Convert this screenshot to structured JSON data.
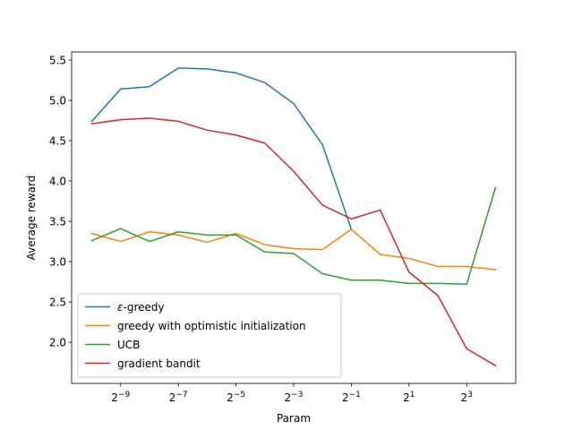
{
  "chart_data": {
    "type": "line",
    "title": "",
    "xlabel": "Param",
    "ylabel": "Average reward",
    "x_scale": "log2",
    "x_exponents": [
      -10,
      -9,
      -8,
      -7,
      -6,
      -5,
      -4,
      -3,
      -2,
      -1,
      0,
      1,
      2,
      3,
      4
    ],
    "xlim_exponent": [
      -10.7,
      4.7
    ],
    "ylim": [
      1.49,
      5.6
    ],
    "x_ticks": [
      {
        "exp": -9,
        "base": "2",
        "sup": "−9"
      },
      {
        "exp": -7,
        "base": "2",
        "sup": "−7"
      },
      {
        "exp": -5,
        "base": "2",
        "sup": "−5"
      },
      {
        "exp": -3,
        "base": "2",
        "sup": "−3"
      },
      {
        "exp": -1,
        "base": "2",
        "sup": "−1"
      },
      {
        "exp": 1,
        "base": "2",
        "sup": "1"
      },
      {
        "exp": 3,
        "base": "2",
        "sup": "3"
      }
    ],
    "y_ticks": [
      {
        "value": 2.0,
        "label": "2.0"
      },
      {
        "value": 2.5,
        "label": "2.5"
      },
      {
        "value": 3.0,
        "label": "3.0"
      },
      {
        "value": 3.5,
        "label": "3.5"
      },
      {
        "value": 4.0,
        "label": "4.0"
      },
      {
        "value": 4.5,
        "label": "4.5"
      },
      {
        "value": 5.0,
        "label": "5.0"
      },
      {
        "value": 5.5,
        "label": "5.5"
      }
    ],
    "grid": false,
    "legend_position": "lower-left",
    "series": [
      {
        "name": "ε-greedy",
        "name_italic": "ε",
        "name_rest": "-greedy",
        "color": "#1f77b4",
        "x_exponents": [
          -10,
          -9,
          -8,
          -7,
          -6,
          -5,
          -4,
          -3,
          -2,
          -1
        ],
        "values": [
          4.74,
          5.14,
          5.17,
          5.4,
          5.39,
          5.34,
          5.22,
          4.96,
          4.45,
          3.4
        ]
      },
      {
        "name": "greedy with optimistic initialization",
        "color": "#ff7f0e",
        "x_exponents": [
          -10,
          -9,
          -8,
          -7,
          -6,
          -5,
          -4,
          -3,
          -2,
          -1,
          0,
          1,
          2,
          3,
          4
        ],
        "values": [
          3.35,
          3.25,
          3.37,
          3.33,
          3.24,
          3.35,
          3.21,
          3.16,
          3.15,
          3.4,
          3.09,
          3.04,
          2.94,
          2.94,
          2.9
        ]
      },
      {
        "name": "UCB",
        "color": "#2ca02c",
        "x_exponents": [
          -10,
          -9,
          -8,
          -7,
          -6,
          -5,
          -4,
          -3,
          -2,
          -1,
          0,
          1,
          2,
          3,
          4
        ],
        "values": [
          3.26,
          3.41,
          3.25,
          3.37,
          3.33,
          3.33,
          3.12,
          3.1,
          2.85,
          2.77,
          2.77,
          2.73,
          2.73,
          2.72,
          3.92
        ]
      },
      {
        "name": "gradient bandit",
        "color": "#d62728",
        "x_exponents": [
          -10,
          -9,
          -8,
          -7,
          -6,
          -5,
          -4,
          -3,
          -2,
          -1,
          0,
          1,
          2,
          3,
          4
        ],
        "values": [
          4.71,
          4.76,
          4.78,
          4.74,
          4.63,
          4.57,
          4.47,
          4.12,
          3.7,
          3.53,
          3.64,
          2.87,
          2.58,
          1.92,
          1.71
        ]
      }
    ]
  }
}
